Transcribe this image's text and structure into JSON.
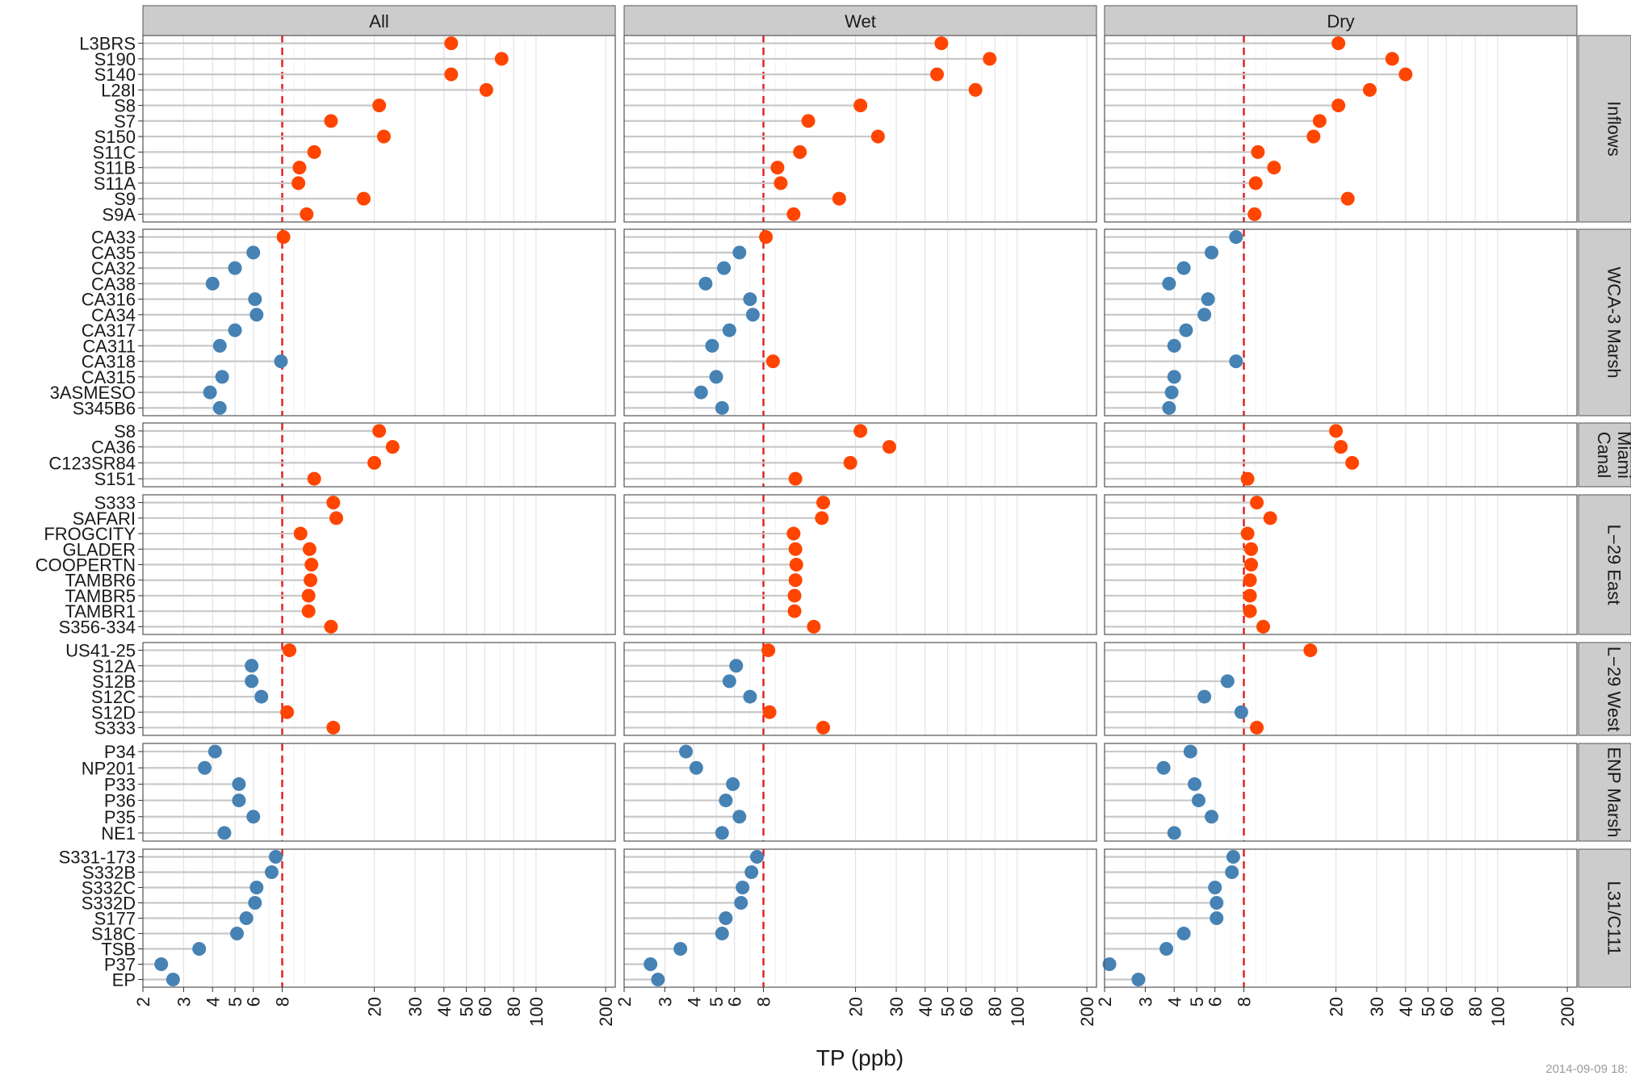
{
  "chart_data": {
    "type": "scatter",
    "subtype": "dot-plot",
    "xlabel": "TP (ppb)",
    "x_scale": "log",
    "xlim": [
      2,
      220
    ],
    "x_ticks": [
      2,
      3,
      4,
      5,
      6,
      8,
      20,
      30,
      40,
      50,
      60,
      80,
      100,
      200
    ],
    "reference_line": {
      "x": 8,
      "style": "dashed",
      "color": "#e41a1c"
    },
    "columns": [
      "All",
      "Wet",
      "Dry"
    ],
    "colors": {
      "above": "#ff4500",
      "below": "#4682b4",
      "segment": "#c8c8c8",
      "strip": "#cccccc"
    },
    "grid": true,
    "legend": "none",
    "timestamp": "2014-09-09 18:",
    "panels": [
      {
        "name": "Inflows",
        "label_lines": [
          "Inflows"
        ],
        "sites": [
          {
            "site": "L3BRS",
            "values": [
              43,
              47,
              20.5
            ]
          },
          {
            "site": "S190",
            "values": [
              71,
              76,
              35
            ]
          },
          {
            "site": "S140",
            "values": [
              43,
              45,
              40
            ]
          },
          {
            "site": "L28I",
            "values": [
              61,
              66,
              28
            ]
          },
          {
            "site": "S8",
            "values": [
              21,
              21,
              20.5
            ]
          },
          {
            "site": "S7",
            "values": [
              13,
              12.5,
              17
            ]
          },
          {
            "site": "S150",
            "values": [
              22,
              25,
              16
            ]
          },
          {
            "site": "S11C",
            "values": [
              11,
              11.5,
              9.2
            ]
          },
          {
            "site": "S11B",
            "values": [
              9.5,
              9.2,
              10.8
            ]
          },
          {
            "site": "S11A",
            "values": [
              9.4,
              9.5,
              9.0
            ]
          },
          {
            "site": "S9",
            "values": [
              18,
              17,
              22.5
            ]
          },
          {
            "site": "S9A",
            "values": [
              10.2,
              10.8,
              8.9
            ]
          }
        ]
      },
      {
        "name": "WCA-3 Marsh",
        "label_lines": [
          "WCA-3 Marsh"
        ],
        "sites": [
          {
            "site": "CA33",
            "values": [
              8.1,
              8.2,
              7.4
            ]
          },
          {
            "site": "CA35",
            "values": [
              6.0,
              6.3,
              5.8
            ]
          },
          {
            "site": "CA32",
            "values": [
              5.0,
              5.4,
              4.4
            ]
          },
          {
            "site": "CA38",
            "values": [
              4.0,
              4.5,
              3.8
            ]
          },
          {
            "site": "CA316",
            "values": [
              6.1,
              7.0,
              5.6
            ]
          },
          {
            "site": "CA34",
            "values": [
              6.2,
              7.2,
              5.4
            ]
          },
          {
            "site": "CA317",
            "values": [
              5.0,
              5.7,
              4.5
            ]
          },
          {
            "site": "CA311",
            "values": [
              4.3,
              4.8,
              4.0
            ]
          },
          {
            "site": "CA318",
            "values": [
              7.9,
              8.8,
              7.4
            ]
          },
          {
            "site": "CA315",
            "values": [
              4.4,
              5.0,
              4.0
            ]
          },
          {
            "site": "3ASMESO",
            "values": [
              3.9,
              4.3,
              3.9
            ]
          },
          {
            "site": "S345B6",
            "values": [
              4.3,
              5.3,
              3.8
            ]
          }
        ]
      },
      {
        "name": "Miami Canal",
        "label_lines": [
          "Miami",
          "Canal"
        ],
        "sites": [
          {
            "site": "S8",
            "values": [
              21,
              21,
              20
            ]
          },
          {
            "site": "CA36",
            "values": [
              24,
              28,
              21
            ]
          },
          {
            "site": "C123SR84",
            "values": [
              20,
              19,
              23.5
            ]
          },
          {
            "site": "S151",
            "values": [
              11,
              11,
              8.3
            ]
          }
        ]
      },
      {
        "name": "L-29 East",
        "label_lines": [
          "L−29 East"
        ],
        "sites": [
          {
            "site": "S333",
            "values": [
              13.3,
              14.5,
              9.1
            ]
          },
          {
            "site": "SAFARI",
            "values": [
              13.7,
              14.3,
              10.4
            ]
          },
          {
            "site": "FROGCITY",
            "values": [
              9.6,
              10.8,
              8.3
            ]
          },
          {
            "site": "GLADER",
            "values": [
              10.5,
              11.0,
              8.6
            ]
          },
          {
            "site": "COOPERTN",
            "values": [
              10.7,
              11.1,
              8.6
            ]
          },
          {
            "site": "TAMBR6",
            "values": [
              10.6,
              11.0,
              8.5
            ]
          },
          {
            "site": "TAMBR5",
            "values": [
              10.4,
              10.9,
              8.5
            ]
          },
          {
            "site": "TAMBR1",
            "values": [
              10.4,
              10.9,
              8.5
            ]
          },
          {
            "site": "S356-334",
            "values": [
              13.0,
              13.2,
              9.7
            ]
          }
        ]
      },
      {
        "name": "L-29 West",
        "label_lines": [
          "L−29 West"
        ],
        "sites": [
          {
            "site": "US41-25",
            "values": [
              8.6,
              8.4,
              15.5
            ]
          },
          {
            "site": "S12A",
            "values": [
              5.9,
              6.1,
              null
            ]
          },
          {
            "site": "S12B",
            "values": [
              5.9,
              5.7,
              6.8
            ]
          },
          {
            "site": "S12C",
            "values": [
              6.5,
              7.0,
              5.4
            ]
          },
          {
            "site": "S12D",
            "values": [
              8.4,
              8.5,
              7.8
            ]
          },
          {
            "site": "S333",
            "values": [
              13.3,
              14.5,
              9.1
            ]
          }
        ]
      },
      {
        "name": "ENP Marsh",
        "label_lines": [
          "ENP Marsh"
        ],
        "sites": [
          {
            "site": "P34",
            "values": [
              4.1,
              3.7,
              4.7
            ]
          },
          {
            "site": "NP201",
            "values": [
              3.7,
              4.1,
              3.6
            ]
          },
          {
            "site": "P33",
            "values": [
              5.2,
              5.9,
              4.9
            ]
          },
          {
            "site": "P36",
            "values": [
              5.2,
              5.5,
              5.1
            ]
          },
          {
            "site": "P35",
            "values": [
              6.0,
              6.3,
              5.8
            ]
          },
          {
            "site": "NE1",
            "values": [
              4.5,
              5.3,
              4.0
            ]
          }
        ]
      },
      {
        "name": "L31/C111",
        "label_lines": [
          "L31/C111"
        ],
        "sites": [
          {
            "site": "S331-173",
            "values": [
              7.5,
              7.5,
              7.2
            ]
          },
          {
            "site": "S332B",
            "values": [
              7.2,
              7.1,
              7.1
            ]
          },
          {
            "site": "S332C",
            "values": [
              6.2,
              6.5,
              6.0
            ]
          },
          {
            "site": "S332D",
            "values": [
              6.1,
              6.4,
              6.1
            ]
          },
          {
            "site": "S177",
            "values": [
              5.6,
              5.5,
              6.1
            ]
          },
          {
            "site": "S18C",
            "values": [
              5.1,
              5.3,
              4.4
            ]
          },
          {
            "site": "TSB",
            "values": [
              3.5,
              3.5,
              3.7
            ]
          },
          {
            "site": "P37",
            "values": [
              2.4,
              2.6,
              2.1
            ]
          },
          {
            "site": "EP",
            "values": [
              2.7,
              2.8,
              2.8
            ]
          }
        ]
      }
    ]
  }
}
